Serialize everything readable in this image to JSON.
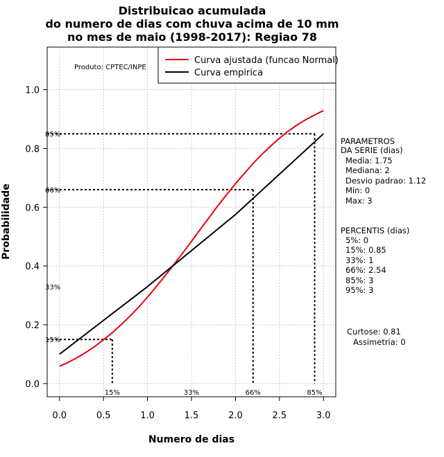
{
  "chart_data": {
    "type": "line",
    "title": [
      "Distribuicao acumulada",
      "do numero de dias com chuva acima de 10 mm",
      "no mes de maio (1998-2017): Regiao 78"
    ],
    "xlabel": "Numero de dias",
    "ylabel": "Probabilidade",
    "xlim": [
      -0.14,
      3.14
    ],
    "ylim": [
      -0.045,
      1.145
    ],
    "xticks": [
      0.0,
      0.5,
      1.0,
      1.5,
      2.0,
      2.5,
      3.0
    ],
    "xtick_labels": [
      "0.0",
      "0.5",
      "1.0",
      "1.5",
      "2.0",
      "2.5",
      "3.0"
    ],
    "yticks": [
      0.0,
      0.2,
      0.4,
      0.6,
      0.8,
      1.0
    ],
    "ytick_labels": [
      "0.0",
      "0.2",
      "0.4",
      "0.6",
      "0.8",
      "1.0"
    ],
    "grid": true,
    "series": [
      {
        "name": "Curva ajustada (funcao Normal)",
        "color": "#e8000b",
        "x": [
          0.0,
          0.1,
          0.2,
          0.3,
          0.4,
          0.5,
          0.6,
          0.7,
          0.8,
          0.9,
          1.0,
          1.1,
          1.2,
          1.3,
          1.4,
          1.5,
          1.6,
          1.7,
          1.8,
          1.9,
          2.0,
          2.1,
          2.2,
          2.3,
          2.4,
          2.5,
          2.6,
          2.7,
          2.8,
          2.9,
          3.0
        ],
        "y": [
          0.059,
          0.072,
          0.088,
          0.106,
          0.126,
          0.149,
          0.173,
          0.2,
          0.229,
          0.26,
          0.294,
          0.33,
          0.367,
          0.405,
          0.444,
          0.484,
          0.525,
          0.565,
          0.605,
          0.643,
          0.68,
          0.715,
          0.749,
          0.78,
          0.808,
          0.835,
          0.859,
          0.88,
          0.898,
          0.914,
          0.929
        ]
      },
      {
        "name": "Curva empirica",
        "color": "#000000",
        "x": [
          0.0,
          1.0,
          2.0,
          3.0
        ],
        "y": [
          0.1,
          0.33,
          0.575,
          0.85
        ]
      }
    ],
    "reference_lines": [
      {
        "label": "15%",
        "x": 0.6,
        "y": 0.15
      },
      {
        "label": "66%",
        "x": 2.2,
        "y": 0.66
      },
      {
        "label": "85%",
        "x": 2.9,
        "y": 0.85
      }
    ],
    "bottom_percent_labels": [
      {
        "label": "15%",
        "x": 0.6
      },
      {
        "label": "33%",
        "x": 1.5
      },
      {
        "label": "66%",
        "x": 2.2
      },
      {
        "label": "85%",
        "x": 2.9
      }
    ],
    "left_percent_labels": [
      {
        "label": "85%",
        "y": 0.85
      },
      {
        "label": "66%",
        "y": 0.66
      },
      {
        "label": "33%",
        "y": 0.33
      },
      {
        "label": "15%",
        "y": 0.15
      }
    ],
    "legend": {
      "position": "top-right",
      "entries": [
        {
          "label": "Curva ajustada (funcao Normal)",
          "color": "#e8000b"
        },
        {
          "label": "Curva empirica",
          "color": "#000000"
        }
      ]
    },
    "annotation": "Produto: CPTEC/INPE"
  },
  "side_panel": {
    "params_title": [
      "PARAMETROS",
      "DA SERIE (dias)"
    ],
    "params": [
      "Media: 1.75",
      "Mediana: 2",
      "Desvio padrao: 1.12",
      "Min: 0",
      "Max: 3"
    ],
    "percentis_title": "PERCENTIS (dias)",
    "percentis": [
      "5%: 0",
      "15%: 0.85",
      "33%: 1",
      "66%: 2.54",
      "85%: 3",
      "95%: 3"
    ],
    "curtose": "Curtose: 0.81",
    "assimetria": "Assimetria: 0"
  }
}
